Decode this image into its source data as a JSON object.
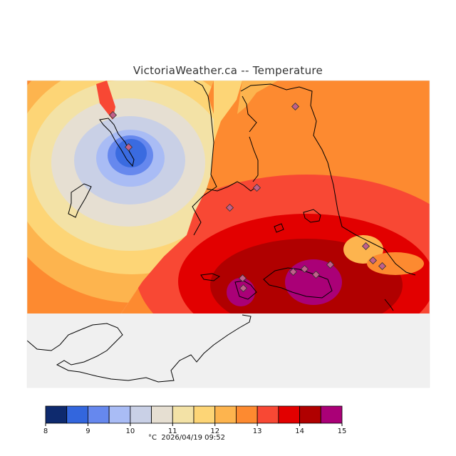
{
  "title": "VictoriaWeather.ca -- Temperature",
  "legend": {
    "unit": "°C",
    "timestamp": "2026/04/19 09:52",
    "ticks": [
      "8",
      "9",
      "10",
      "11",
      "12",
      "13",
      "14",
      "15"
    ],
    "bins": [
      {
        "from": 8.0,
        "to": 8.5,
        "color": "#0e2a6e"
      },
      {
        "from": 8.5,
        "to": 9.0,
        "color": "#3366dd"
      },
      {
        "from": 9.0,
        "to": 9.5,
        "color": "#6688ee"
      },
      {
        "from": 9.5,
        "to": 10.0,
        "color": "#a9bcf5"
      },
      {
        "from": 10.0,
        "to": 10.5,
        "color": "#c9d0e6"
      },
      {
        "from": 10.5,
        "to": 11.0,
        "color": "#e6dfd2"
      },
      {
        "from": 11.0,
        "to": 11.5,
        "color": "#f3e2a6"
      },
      {
        "from": 11.5,
        "to": 12.0,
        "color": "#fdd576"
      },
      {
        "from": 12.0,
        "to": 12.5,
        "color": "#fdb44e"
      },
      {
        "from": 12.5,
        "to": 13.0,
        "color": "#fd8a30"
      },
      {
        "from": 13.0,
        "to": 13.5,
        "color": "#f84834"
      },
      {
        "from": 13.5,
        "to": 14.0,
        "color": "#e20000"
      },
      {
        "from": 14.0,
        "to": 14.5,
        "color": "#b00000"
      },
      {
        "from": 14.5,
        "to": 15.0,
        "color": "#aa0077"
      }
    ]
  },
  "colors": {
    "water": "#f0f0f0",
    "land_outline": "#000000",
    "station_marker": "#c0608a"
  },
  "station_icon": "diamond-station-marker"
}
